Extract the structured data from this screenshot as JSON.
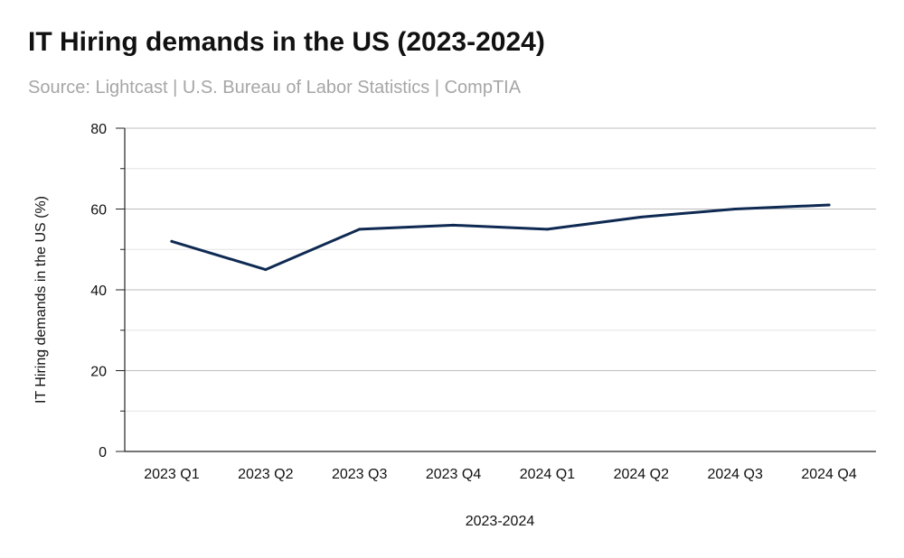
{
  "chart_data": {
    "type": "line",
    "title": "IT Hiring demands in the US (2023-2024)",
    "subtitle": "Source: Lightcast | U.S. Bureau of Labor Statistics | CompTIA",
    "xlabel": "2023-2024",
    "ylabel": "IT Hiring demands in the US (%)",
    "categories": [
      "2023 Q1",
      "2023 Q2",
      "2023 Q3",
      "2023 Q4",
      "2024 Q1",
      "2024 Q2",
      "2024 Q3",
      "2024 Q4"
    ],
    "series": [
      {
        "values": [
          52,
          45,
          55,
          56,
          55,
          58,
          60,
          61
        ],
        "color": "#0f2a52"
      }
    ],
    "ylim": [
      0,
      80
    ],
    "yticks": [
      0,
      20,
      40,
      60,
      80
    ],
    "grid": true,
    "legend": "none"
  }
}
